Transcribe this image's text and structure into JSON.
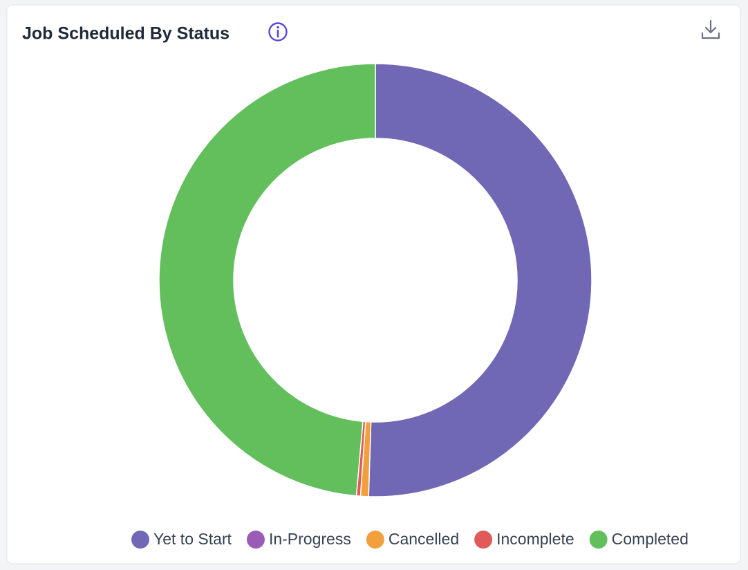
{
  "chart_data": {
    "type": "doughnut",
    "title": "Job Scheduled By Status",
    "categories": [
      "Yet to Start",
      "In-Progress",
      "Cancelled",
      "Incomplete",
      "Completed"
    ],
    "values": [
      50.5,
      0,
      0.6,
      0.3,
      48.6
    ],
    "colors": [
      "#7068b5",
      "#9b5cb8",
      "#f2a03d",
      "#e05a5a",
      "#62bf5c"
    ],
    "legend": "bottom"
  }
}
